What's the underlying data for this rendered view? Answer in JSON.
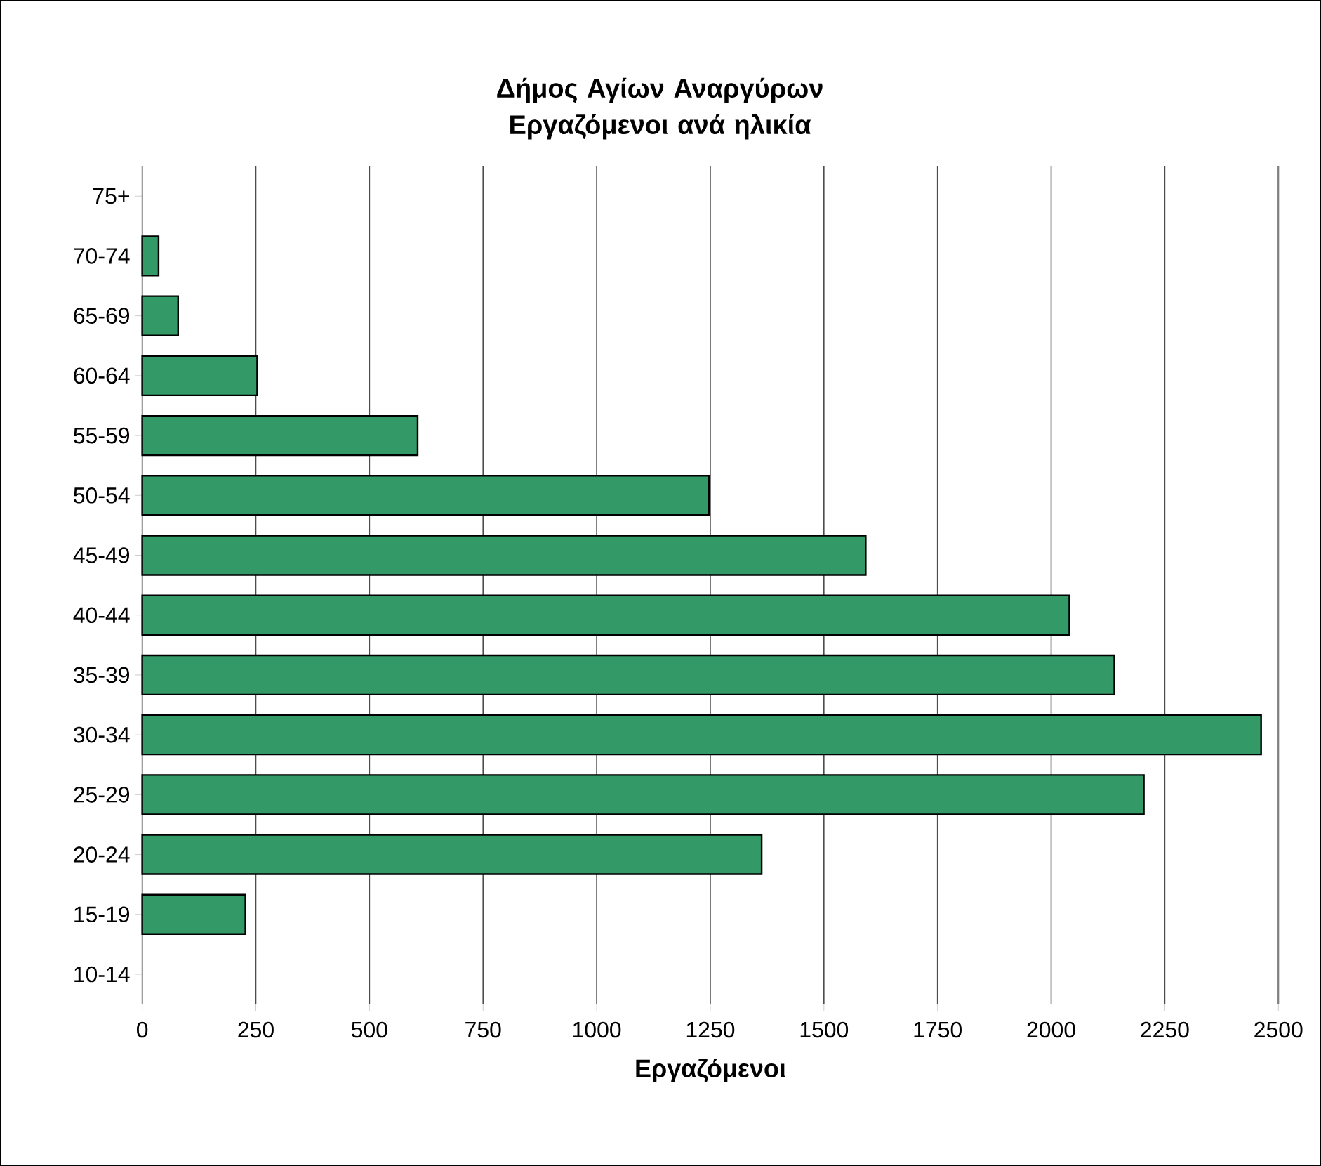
{
  "chart_data": {
    "type": "bar",
    "orientation": "horizontal",
    "title": "Δήμος Αγίων Αναργύρων\nΕργαζόμενοι ανά ηλικία",
    "xlabel": "Εργαζόμενοι",
    "categories": [
      "75+",
      "70-74",
      "65-69",
      "60-64",
      "55-59",
      "50-54",
      "45-49",
      "40-44",
      "35-39",
      "30-34",
      "25-29",
      "20-24",
      "15-19",
      "10-14"
    ],
    "values": [
      0,
      36,
      79,
      253,
      606,
      1247,
      1592,
      2040,
      2139,
      2462,
      2204,
      1363,
      227,
      0
    ],
    "color": "#339966",
    "xlim": [
      0,
      2500
    ],
    "xticks": [
      0,
      250,
      500,
      750,
      1000,
      1250,
      1500,
      1750,
      2000,
      2250,
      2500
    ],
    "grid": "x"
  }
}
